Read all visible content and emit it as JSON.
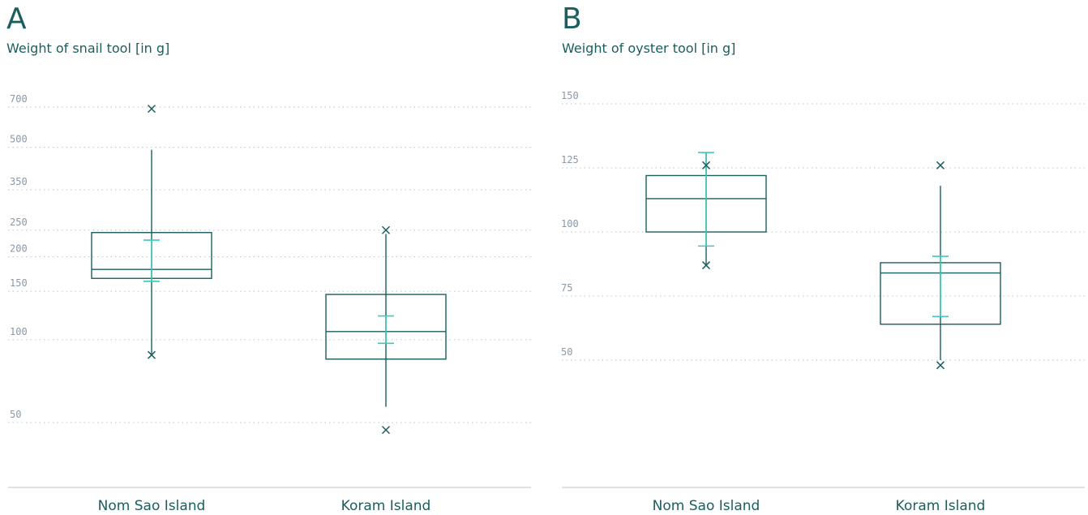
{
  "colors": {
    "dark": "#1b5e5e",
    "accent": "#3cc9bb",
    "grid": "#b8c4cf",
    "axis": "#c5d0da",
    "tick": "#8a98a8"
  },
  "chart_data": [
    {
      "type": "box",
      "panel_label": "A",
      "title": "Weight of snail tool [in g]",
      "yscale": "log",
      "yticks": [
        50,
        100,
        150,
        200,
        250,
        350,
        500,
        700
      ],
      "ylim": [
        40,
        800
      ],
      "categories": [
        "Nom Sao Island",
        "Koram Island"
      ],
      "boxes": [
        {
          "category": "Nom Sao Island",
          "q1": 167,
          "median": 180,
          "q3": 245,
          "whisker_low": 88,
          "whisker_high": 490,
          "outliers": [
            690,
            88
          ],
          "mean": 230,
          "mean_ci": [
            163,
            230
          ]
        },
        {
          "category": "Koram Island",
          "q1": 85,
          "median": 107,
          "q3": 146,
          "whisker_low": 57,
          "whisker_high": 242,
          "outliers": [
            250,
            47
          ],
          "mean": 122,
          "mean_ci": [
            97,
            122
          ]
        }
      ]
    },
    {
      "type": "box",
      "panel_label": "B",
      "title": "Weight of oyster tool [in g]",
      "yscale": "linear",
      "yticks": [
        50,
        75,
        100,
        125,
        150
      ],
      "ylim": [
        30,
        155
      ],
      "categories": [
        "Nom Sao Island",
        "Koram Island"
      ],
      "boxes": [
        {
          "category": "Nom Sao Island",
          "q1": 100,
          "median": 113,
          "q3": 122,
          "whisker_low": 87,
          "whisker_high": 131,
          "outliers": [
            126,
            87
          ],
          "mean_ci": [
            94.5,
            131
          ]
        },
        {
          "category": "Koram Island",
          "q1": 64,
          "median": 84,
          "q3": 88,
          "whisker_low": 50,
          "whisker_high": 118,
          "outliers": [
            126,
            48
          ],
          "mean_ci": [
            67,
            90.5
          ]
        }
      ]
    }
  ]
}
